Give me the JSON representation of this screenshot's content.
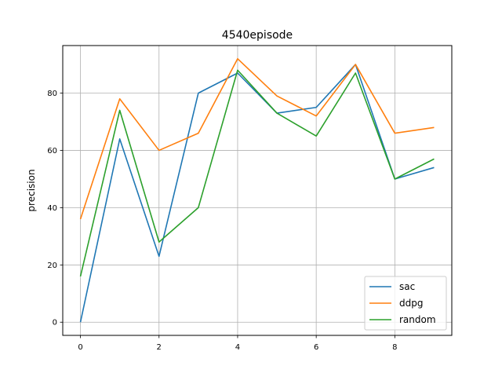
{
  "chart_data": {
    "type": "line",
    "title": "4540episode",
    "xlabel": "",
    "ylabel": "precision",
    "x": [
      0,
      1,
      2,
      3,
      4,
      5,
      6,
      7,
      8,
      9
    ],
    "xlim": [
      -0.45,
      9.45
    ],
    "ylim": [
      -4.6,
      96.6
    ],
    "xticks": [
      0,
      2,
      4,
      6,
      8
    ],
    "yticks": [
      0,
      20,
      40,
      60,
      80
    ],
    "grid": true,
    "legend_position": "lower-right",
    "series": [
      {
        "name": "sac",
        "color": "#1f77b4",
        "values": [
          0,
          64,
          23,
          80,
          87,
          73,
          75,
          90,
          50,
          54
        ]
      },
      {
        "name": "ddpg",
        "color": "#ff7f0e",
        "values": [
          36,
          78,
          60,
          66,
          92,
          79,
          72,
          90,
          66,
          68
        ]
      },
      {
        "name": "random",
        "color": "#2ca02c",
        "values": [
          16,
          74,
          28,
          40,
          88,
          73,
          65,
          87,
          50,
          57
        ]
      }
    ]
  }
}
